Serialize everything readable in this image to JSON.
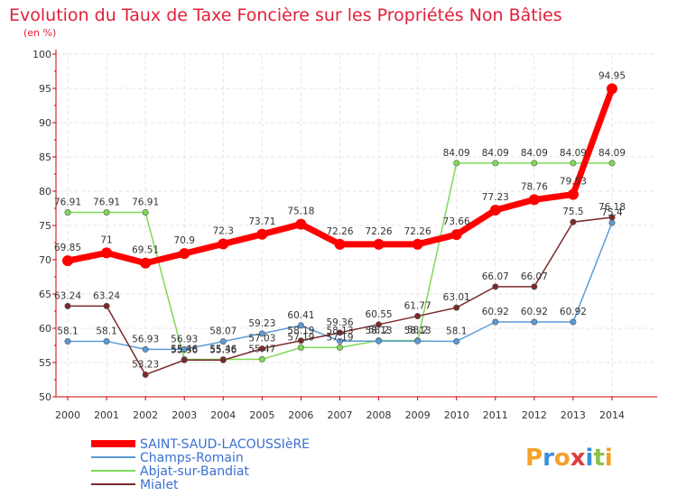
{
  "chart_data": {
    "type": "line",
    "title": "Evolution du Taux de Taxe Foncière sur les Propriétés Non Bâties",
    "subtitle": "(en %)",
    "x": [
      "2000",
      "2001",
      "2002",
      "2003",
      "2004",
      "2005",
      "2006",
      "2007",
      "2008",
      "2009",
      "2010",
      "2011",
      "2012",
      "2013",
      "2014"
    ],
    "ylim": [
      50,
      100
    ],
    "yticks": [
      50,
      55,
      60,
      65,
      70,
      75,
      80,
      85,
      90,
      95,
      100
    ],
    "grid": true,
    "legend_position": "bottom-left",
    "series": [
      {
        "name": "SAINT-SAUD-LACOUSSIèRE",
        "color": "#ff0000",
        "values": [
          69.85,
          71,
          69.51,
          70.9,
          72.3,
          73.71,
          75.18,
          72.26,
          72.26,
          72.26,
          73.66,
          77.23,
          78.76,
          79.53,
          94.95
        ],
        "labels": [
          "69.85",
          "71",
          "69.51",
          "70.9",
          "72.3",
          "73.71",
          "75.18",
          "72.26",
          "72.26",
          "72.26",
          "73.66",
          "77.23",
          "78.76",
          "79.53",
          "94.95"
        ]
      },
      {
        "name": "Champs-Romain",
        "color": "#5b9bd5",
        "values": [
          58.1,
          58.1,
          56.93,
          56.93,
          58.07,
          59.23,
          60.41,
          58.13,
          58.13,
          58.13,
          58.1,
          60.92,
          60.92,
          60.92,
          75.4
        ],
        "labels": [
          "58.1",
          "58.1",
          "56.93",
          "56.93",
          "58.07",
          "59.23",
          "60.41",
          "58.13",
          "58.13",
          "58.13",
          "58.1",
          "60.92",
          "60.92",
          "60.92",
          "75.4"
        ]
      },
      {
        "name": "Abjat-sur-Bandiat",
        "color": "#7ed957",
        "values": [
          76.91,
          76.91,
          76.91,
          55.46,
          55.46,
          55.47,
          57.19,
          57.19,
          58.2,
          58.2,
          84.09,
          84.09,
          84.09,
          84.09,
          84.09
        ],
        "labels": [
          "76.91",
          "76.91",
          "76.91",
          "55.46",
          "55.46",
          "55.47",
          "57.19",
          "57.19",
          "58.2",
          "58.2",
          "84.09",
          "84.09",
          "84.09",
          "84.09",
          "84.09"
        ]
      },
      {
        "name": "Mialet",
        "color": "#7a2a2a",
        "values": [
          63.24,
          63.24,
          53.23,
          55.36,
          55.36,
          57.03,
          58.19,
          59.36,
          60.55,
          61.77,
          63.01,
          66.07,
          66.07,
          75.5,
          76.18
        ],
        "labels": [
          "63.24",
          "63.24",
          "53.23",
          "55.36",
          "55.36",
          "57.03",
          "58.19",
          "59.36",
          "60.55",
          "61.77",
          "63.01",
          "66.07",
          "66.07",
          "75.5",
          "76.18"
        ]
      }
    ]
  },
  "branding": {
    "text": "Proxiti"
  }
}
